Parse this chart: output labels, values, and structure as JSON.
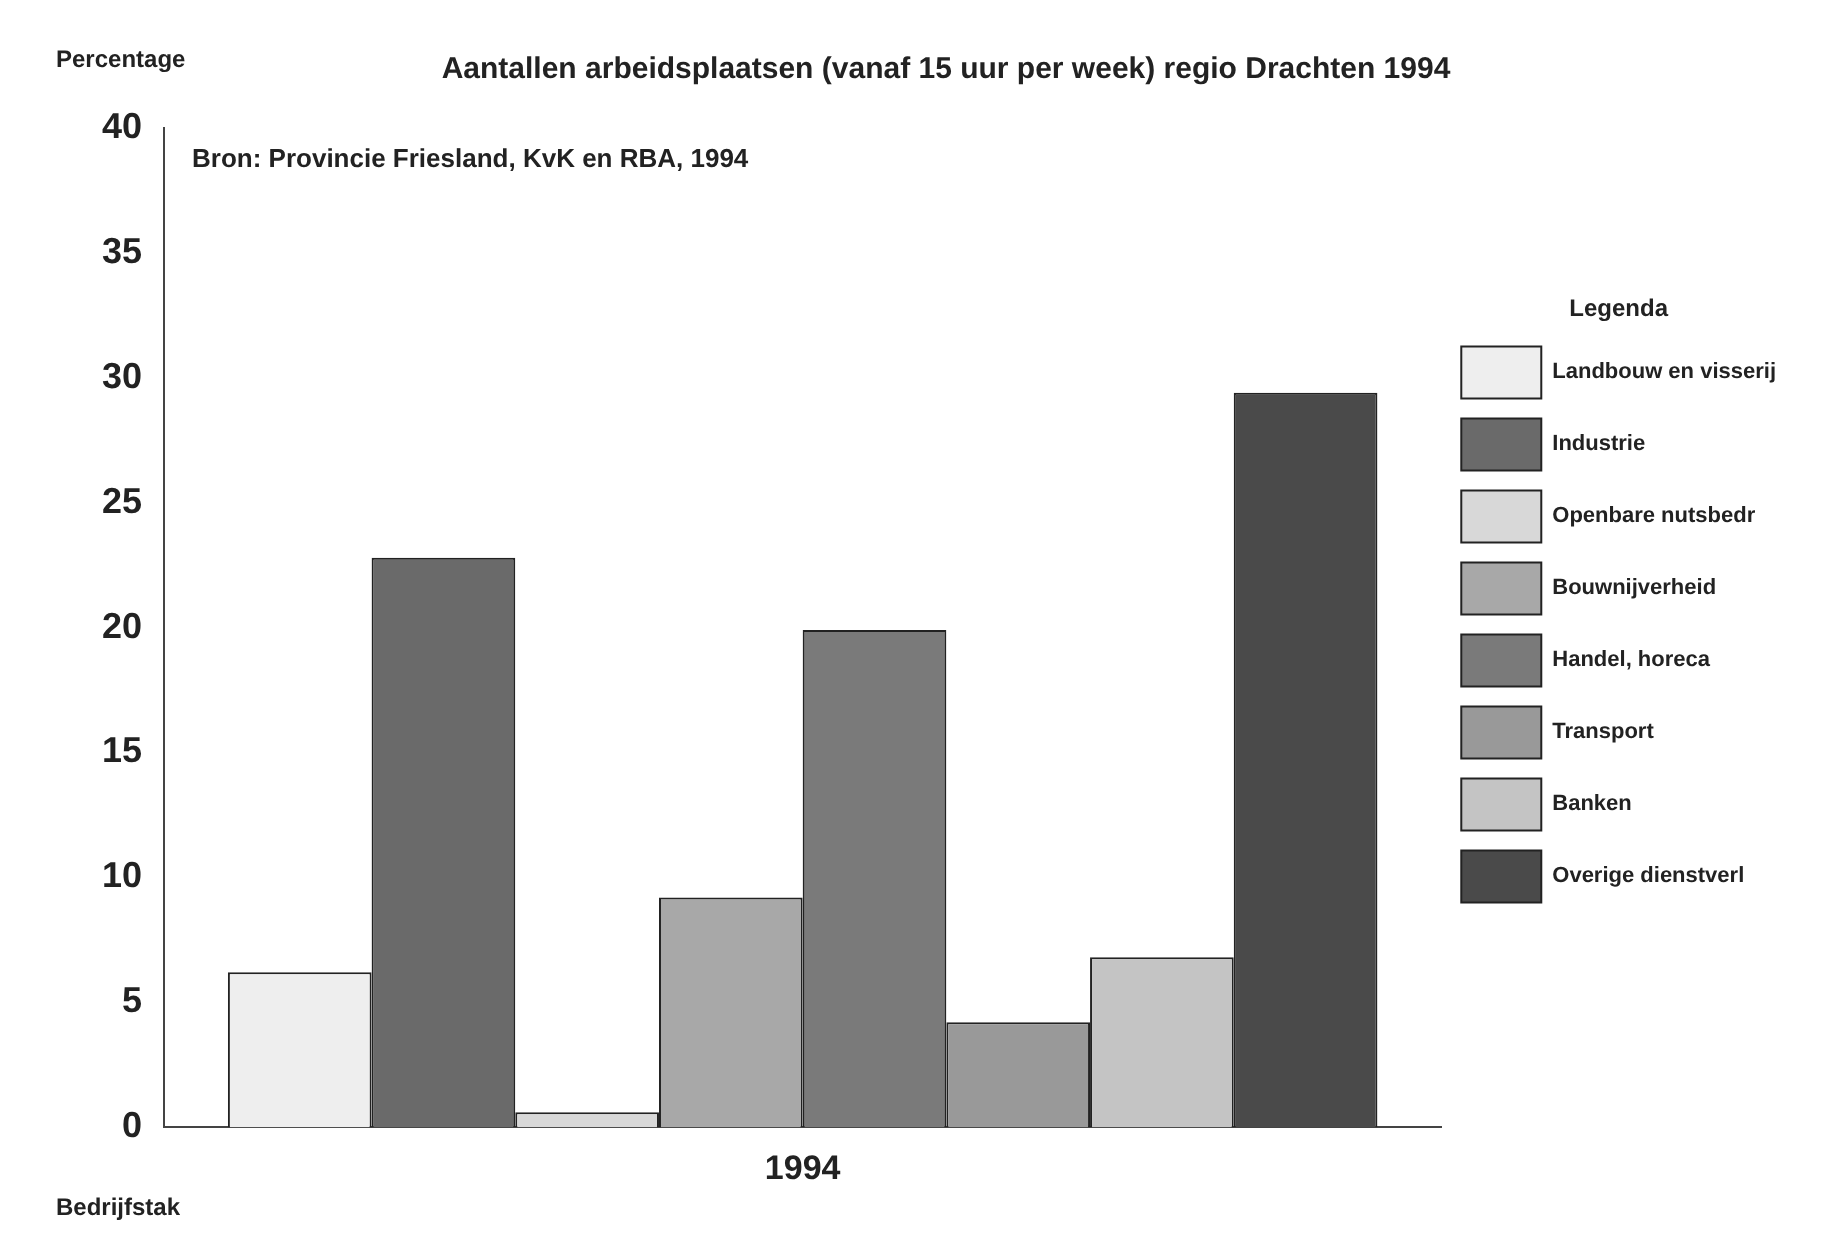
{
  "chart_data": {
    "type": "bar",
    "title": "Aantallen arbeidsplaatsen (vanaf 15 uur per week) regio Drachten 1994",
    "ylabel": "Percentage",
    "xlabel": "Bedrijfstak",
    "legend_title": "Legenda",
    "annotations": [
      "Bron: Provincie Friesland, KvK en RBA, 1994"
    ],
    "categories": [
      "1994"
    ],
    "series": [
      {
        "name": "Landbouw en visserij",
        "color": "#eeeeee",
        "values": [
          6.2
        ]
      },
      {
        "name": "Industrie",
        "color": "#6a6a6a",
        "values": [
          22.8
        ]
      },
      {
        "name": "Openbare nutsbedr",
        "color": "#d8d8d8",
        "values": [
          0.6
        ]
      },
      {
        "name": "Bouwnijverheid",
        "color": "#a8a8a8",
        "values": [
          9.2
        ]
      },
      {
        "name": "Handel, horeca",
        "color": "#7a7a7a",
        "values": [
          19.9
        ]
      },
      {
        "name": "Transport",
        "color": "#999999",
        "values": [
          4.2
        ]
      },
      {
        "name": "Banken",
        "color": "#c4c4c4",
        "values": [
          6.8
        ]
      },
      {
        "name": "Overige dienstverl",
        "color": "#4a4a4a",
        "values": [
          29.4
        ]
      }
    ],
    "ylim": [
      0,
      40
    ],
    "yticks": [
      0,
      5,
      10,
      15,
      20,
      25,
      30,
      35,
      40
    ],
    "grid": false,
    "legend": "right"
  }
}
